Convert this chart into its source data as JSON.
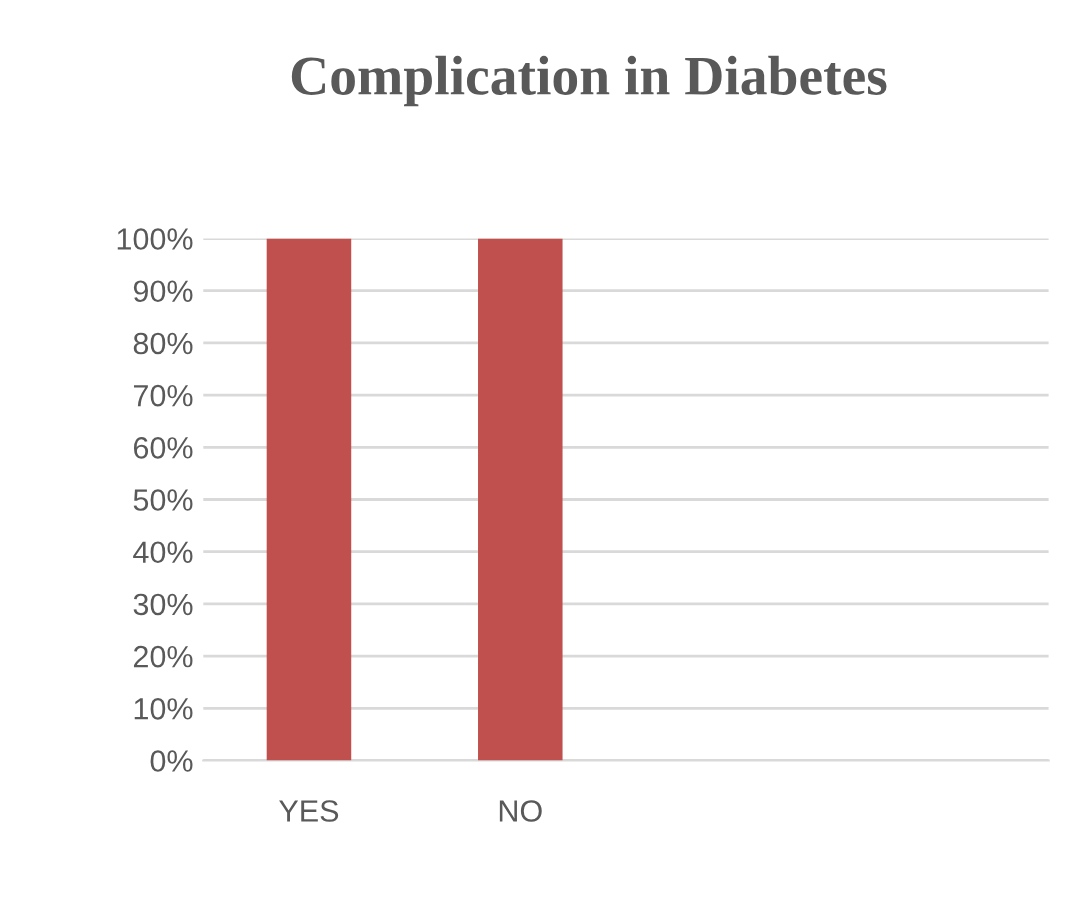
{
  "chart_data": {
    "type": "bar",
    "title": "Complication in Diabetes",
    "categories": [
      "YES",
      "NO",
      null,
      null
    ],
    "values": [
      100,
      100,
      null,
      null
    ],
    "color": "#c0504d",
    "ylim": [
      0,
      100
    ],
    "yticks": [
      {
        "value": 0,
        "label": "0%"
      },
      {
        "value": 10,
        "label": "10%"
      },
      {
        "value": 20,
        "label": "20%"
      },
      {
        "value": 30,
        "label": "30%"
      },
      {
        "value": 40,
        "label": "40%"
      },
      {
        "value": 50,
        "label": "50%"
      },
      {
        "value": 60,
        "label": "60%"
      },
      {
        "value": 70,
        "label": "70%"
      },
      {
        "value": 80,
        "label": "80%"
      },
      {
        "value": 90,
        "label": "90%"
      },
      {
        "value": 100,
        "label": "100%"
      }
    ],
    "grid": "y",
    "legend": false
  }
}
